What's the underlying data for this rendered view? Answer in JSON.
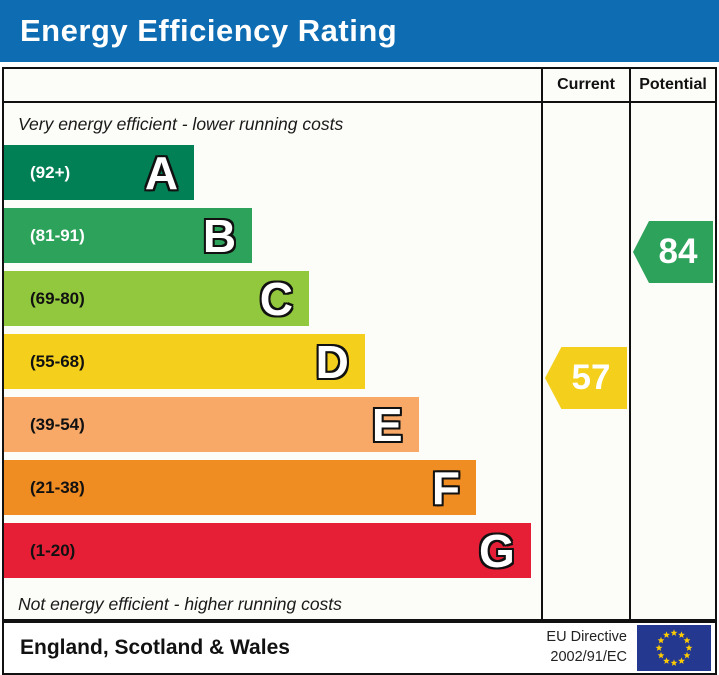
{
  "title": "Energy Efficiency Rating",
  "columns": {
    "current": "Current",
    "potential": "Potential"
  },
  "notes": {
    "top": "Very energy efficient - lower running costs",
    "bottom": "Not energy efficient - higher running costs"
  },
  "bands": [
    {
      "letter": "A",
      "range_label": "(92+)",
      "color": "#008054",
      "label_color": "#ffffff",
      "width_pct": 35.4
    },
    {
      "letter": "B",
      "range_label": "(81-91)",
      "color": "#2ca25a",
      "label_color": "#ffffff",
      "width_pct": 46.2
    },
    {
      "letter": "C",
      "range_label": "(69-80)",
      "color": "#92c83d",
      "label_color": "#111111",
      "width_pct": 56.8
    },
    {
      "letter": "D",
      "range_label": "(55-68)",
      "color": "#f4d01c",
      "label_color": "#111111",
      "width_pct": 67.2
    },
    {
      "letter": "E",
      "range_label": "(39-54)",
      "color": "#f8a968",
      "label_color": "#111111",
      "width_pct": 77.2
    },
    {
      "letter": "F",
      "range_label": "(21-38)",
      "color": "#ef8c22",
      "label_color": "#111111",
      "width_pct": 87.9
    },
    {
      "letter": "G",
      "range_label": "(1-20)",
      "color": "#e61e36",
      "label_color": "#111111",
      "width_pct": 98.1
    }
  ],
  "current": {
    "value": "57",
    "band": "D",
    "color": "#f4d01c",
    "row": 3
  },
  "potential": {
    "value": "84",
    "band": "B",
    "color": "#2ca25a",
    "row": 1
  },
  "footer": {
    "region": "England, Scotland & Wales",
    "directive_line1": "EU Directive",
    "directive_line2": "2002/91/EC"
  },
  "icons": {
    "eu_flag": "eu-flag-icon"
  },
  "colors": {
    "title_bar": "#0d6cb2",
    "border": "#111111",
    "chart_background": "#fcfcf8",
    "eu_flag_blue": "#24388f",
    "eu_flag_star": "#ffcc00"
  },
  "chart_data": {
    "type": "bar",
    "orientation": "horizontal",
    "title": "Energy Efficiency Rating",
    "categories": [
      "A",
      "B",
      "C",
      "D",
      "E",
      "F",
      "G"
    ],
    "band_score_ranges": [
      "92+",
      "81-91",
      "69-80",
      "55-68",
      "39-54",
      "21-38",
      "1-20"
    ],
    "band_colors": [
      "#008054",
      "#2ca25a",
      "#92c83d",
      "#f4d01c",
      "#f8a968",
      "#ef8c22",
      "#e61e36"
    ],
    "bar_relative_widths_pct": [
      35.4,
      46.2,
      56.8,
      67.2,
      77.2,
      87.9,
      98.1
    ],
    "columns": [
      "Current",
      "Potential"
    ],
    "ratings": {
      "current": 57,
      "current_band": "D",
      "potential": 84,
      "potential_band": "B"
    },
    "annotations": [
      "Very energy efficient - lower running costs",
      "Not energy efficient - higher running costs"
    ],
    "footer": [
      "England, Scotland & Wales",
      "EU Directive 2002/91/EC"
    ]
  }
}
